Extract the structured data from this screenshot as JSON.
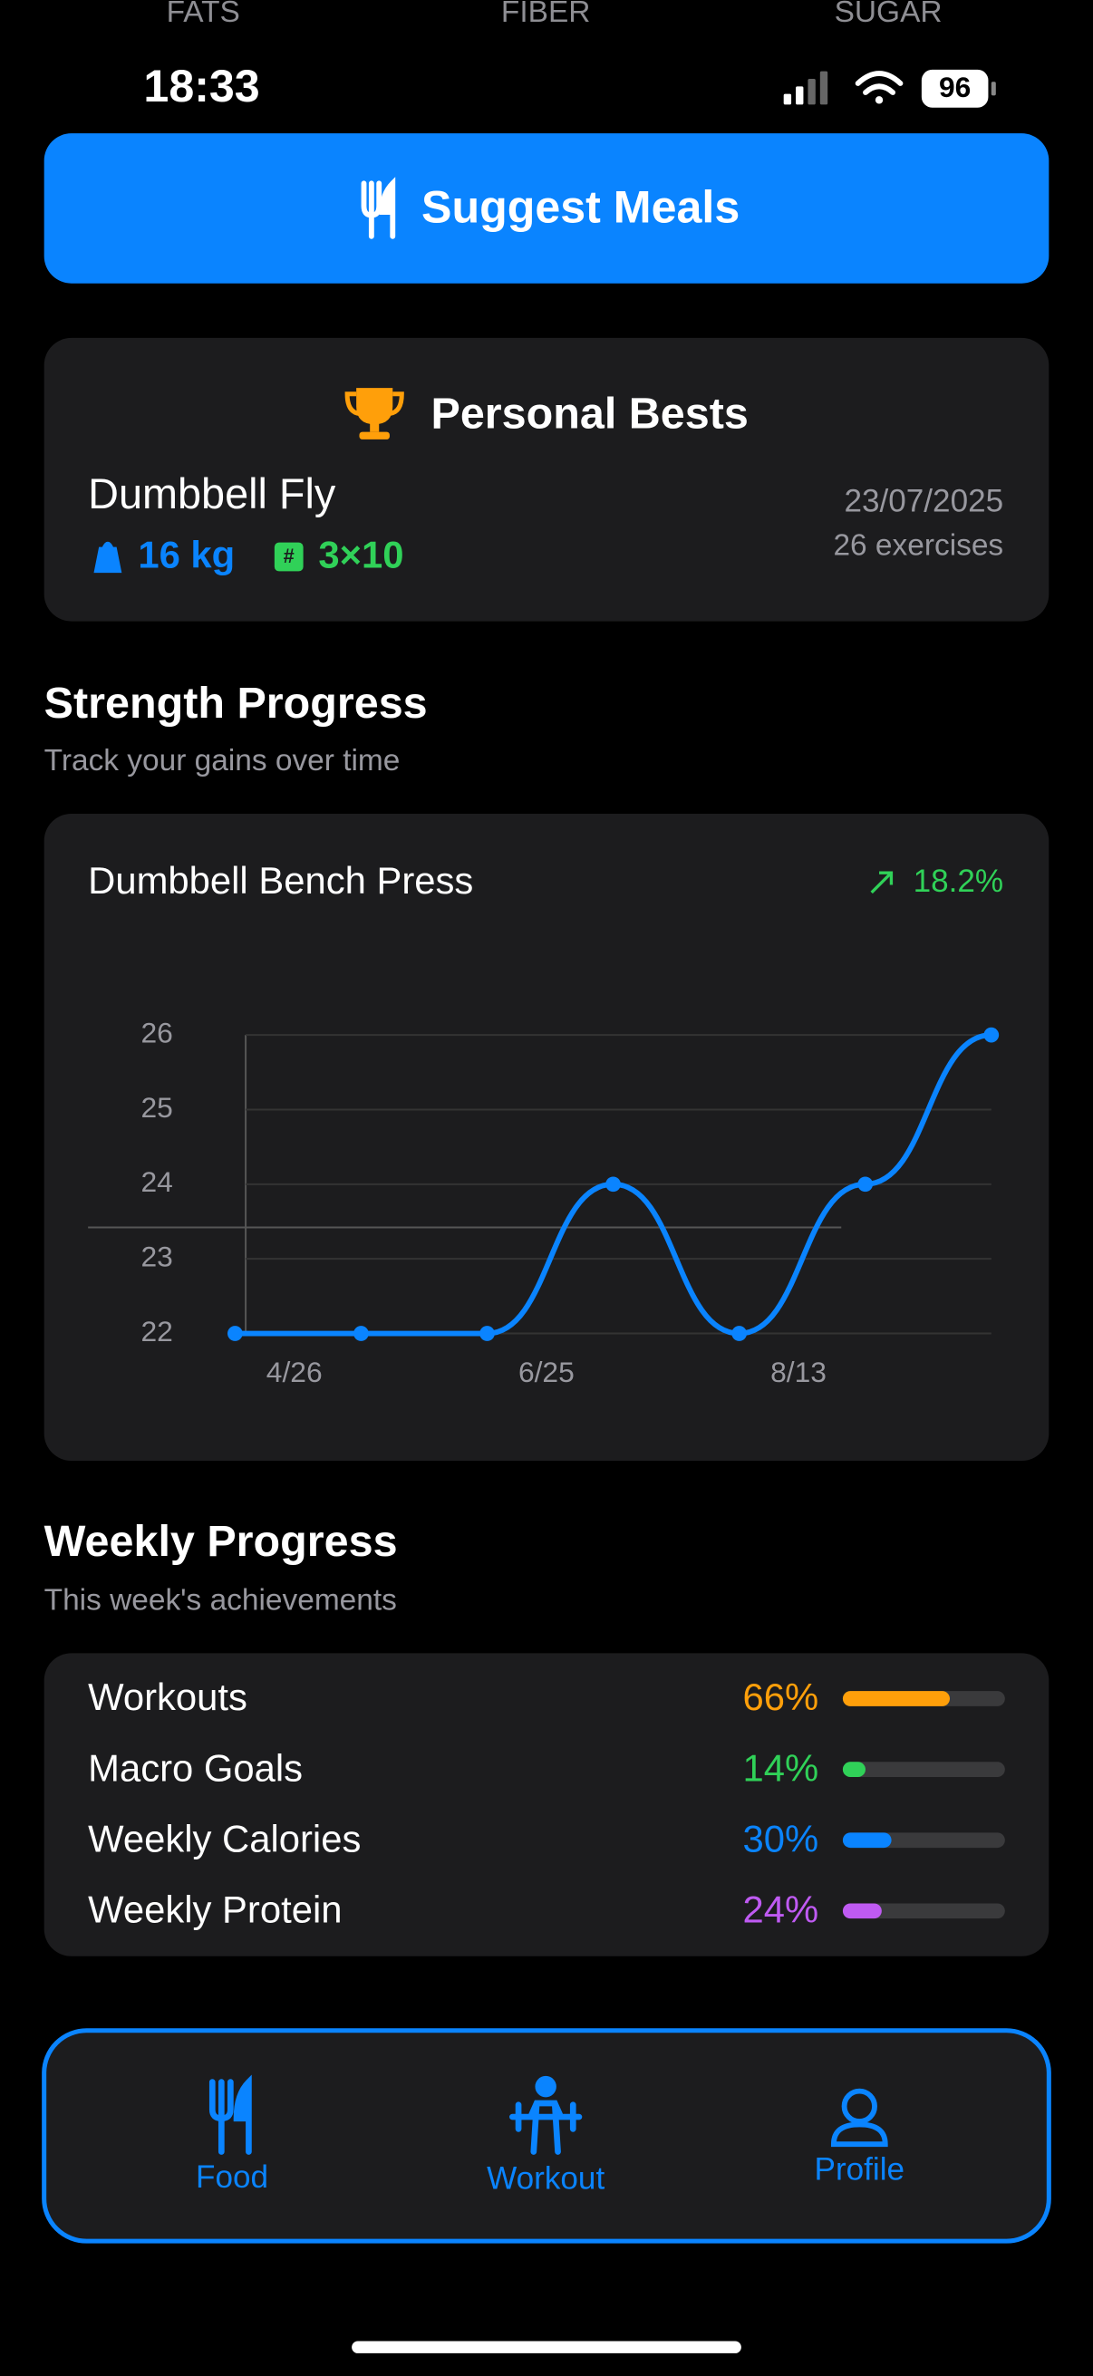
{
  "status_bar": {
    "time": "18:33",
    "battery": "96"
  },
  "macro_header": [
    "FATS",
    "FIBER",
    "SUGAR"
  ],
  "suggest_button": "Suggest Meals",
  "personal_bests": {
    "title": "Personal Bests",
    "exercise": "Dumbbell Fly",
    "weight": "16 kg",
    "sets": "3×10",
    "date": "23/07/2025",
    "count": "26 exercises"
  },
  "strength_progress": {
    "title": "Strength Progress",
    "subtitle": "Track your gains over time"
  },
  "chart_data": {
    "type": "line",
    "title": "Dumbbell Bench Press",
    "change": "18.2%",
    "categories": [
      null,
      null,
      null,
      null,
      null,
      null,
      null
    ],
    "values": [
      22,
      22,
      22,
      24,
      22,
      24,
      26
    ],
    "color": "#0a84ff",
    "ylim": [
      22,
      26
    ],
    "yticks": [
      22,
      23,
      24,
      25,
      26
    ],
    "xticks": [
      {
        "value": 0.47,
        "label": "4/26"
      },
      {
        "value": 2.47,
        "label": "6/25"
      },
      {
        "value": 4.47,
        "label": "8/13"
      }
    ],
    "grid": true
  },
  "weekly_progress": {
    "title": "Weekly Progress",
    "subtitle": "This week's achievements",
    "items": [
      {
        "label": "Workouts",
        "value": 66,
        "value_label": "66%",
        "color": "#ff9f0a"
      },
      {
        "label": "Macro Goals",
        "value": 14,
        "value_label": "14%",
        "color": "#30d158"
      },
      {
        "label": "Weekly Calories",
        "value": 30,
        "value_label": "30%",
        "color": "#0a84ff"
      },
      {
        "label": "Weekly Protein",
        "value": 24,
        "value_label": "24%",
        "color": "#bf5af2"
      }
    ]
  },
  "tab_bar": [
    "Food",
    "Workout",
    "Profile"
  ]
}
